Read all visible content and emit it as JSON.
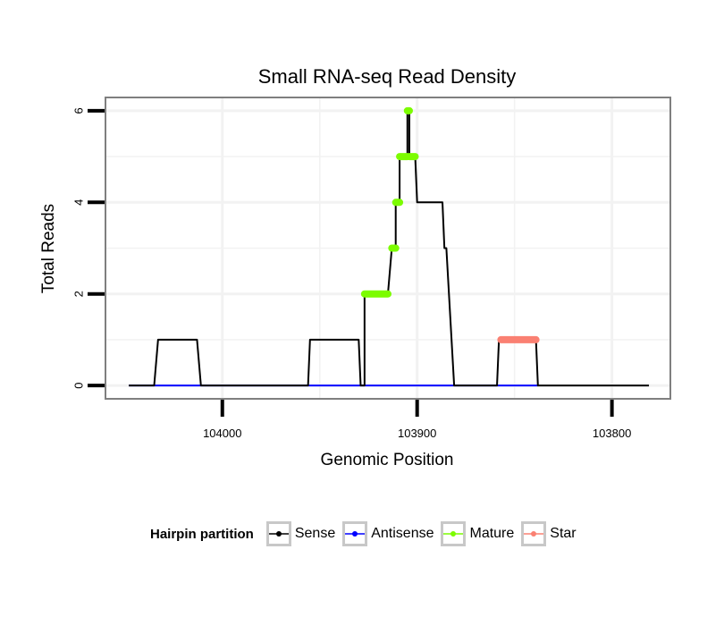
{
  "chart_data": {
    "type": "line",
    "title": "Small RNA-seq Read Density",
    "xlabel": "Genomic Position",
    "ylabel": "Total Reads",
    "xlim": [
      104060,
      103770
    ],
    "ylim": [
      -0.29,
      6.29
    ],
    "x_reversed": true,
    "xticks": [
      104000,
      103900,
      103800
    ],
    "xtick_labels": [
      "104000",
      "103900",
      "103800"
    ],
    "yticks": [
      0,
      2,
      4,
      6
    ],
    "ytick_labels": [
      "0",
      "2",
      "4",
      "6"
    ],
    "grid": true,
    "colors": {
      "sense": "#000000",
      "antisense": "#0000ff",
      "mature": "#7cfc00",
      "star": "#fa8072",
      "panel_border": "#7f7f7f",
      "grid": "#f2f2f2"
    },
    "series": [
      {
        "name": "Sense",
        "key": "sense",
        "x": [
          104048,
          104035,
          104033,
          104013,
          104011,
          103989,
          103956,
          103955,
          103930,
          103929,
          103929,
          103927,
          103927,
          103915,
          103913,
          103911,
          103911,
          103909,
          103909,
          103905,
          103905,
          103904,
          103904,
          103901,
          103900,
          103887,
          103886,
          103885,
          103881,
          103881,
          103876,
          103876,
          103859,
          103858,
          103857,
          103839,
          103838,
          103808,
          103781
        ],
        "y": [
          0,
          0,
          1,
          1,
          0,
          0,
          0,
          1,
          1,
          0,
          0,
          0,
          2,
          2,
          3,
          3,
          4,
          4,
          5,
          5,
          6,
          6,
          5,
          5,
          4,
          4,
          3,
          3,
          0,
          0,
          0,
          0,
          0,
          1,
          1,
          1,
          0,
          0,
          0
        ]
      },
      {
        "name": "Antisense",
        "key": "antisense",
        "x": [
          104048,
          103838
        ],
        "y": [
          0,
          0
        ]
      },
      {
        "name": "Mature",
        "key": "mature",
        "x": [
          103927,
          103915,
          103913,
          103911,
          103911,
          103909,
          103909,
          103905,
          103905,
          103904,
          103904,
          103901
        ],
        "y": [
          2,
          2,
          3,
          3,
          4,
          4,
          5,
          5,
          6,
          6,
          5,
          5
        ]
      },
      {
        "name": "Star",
        "key": "star",
        "x": [
          103857,
          103839
        ],
        "y": [
          1,
          1
        ]
      }
    ],
    "legend": {
      "title": "Hairpin partition",
      "position": "bottom",
      "entries": [
        "Sense",
        "Antisense",
        "Mature",
        "Star"
      ]
    }
  }
}
